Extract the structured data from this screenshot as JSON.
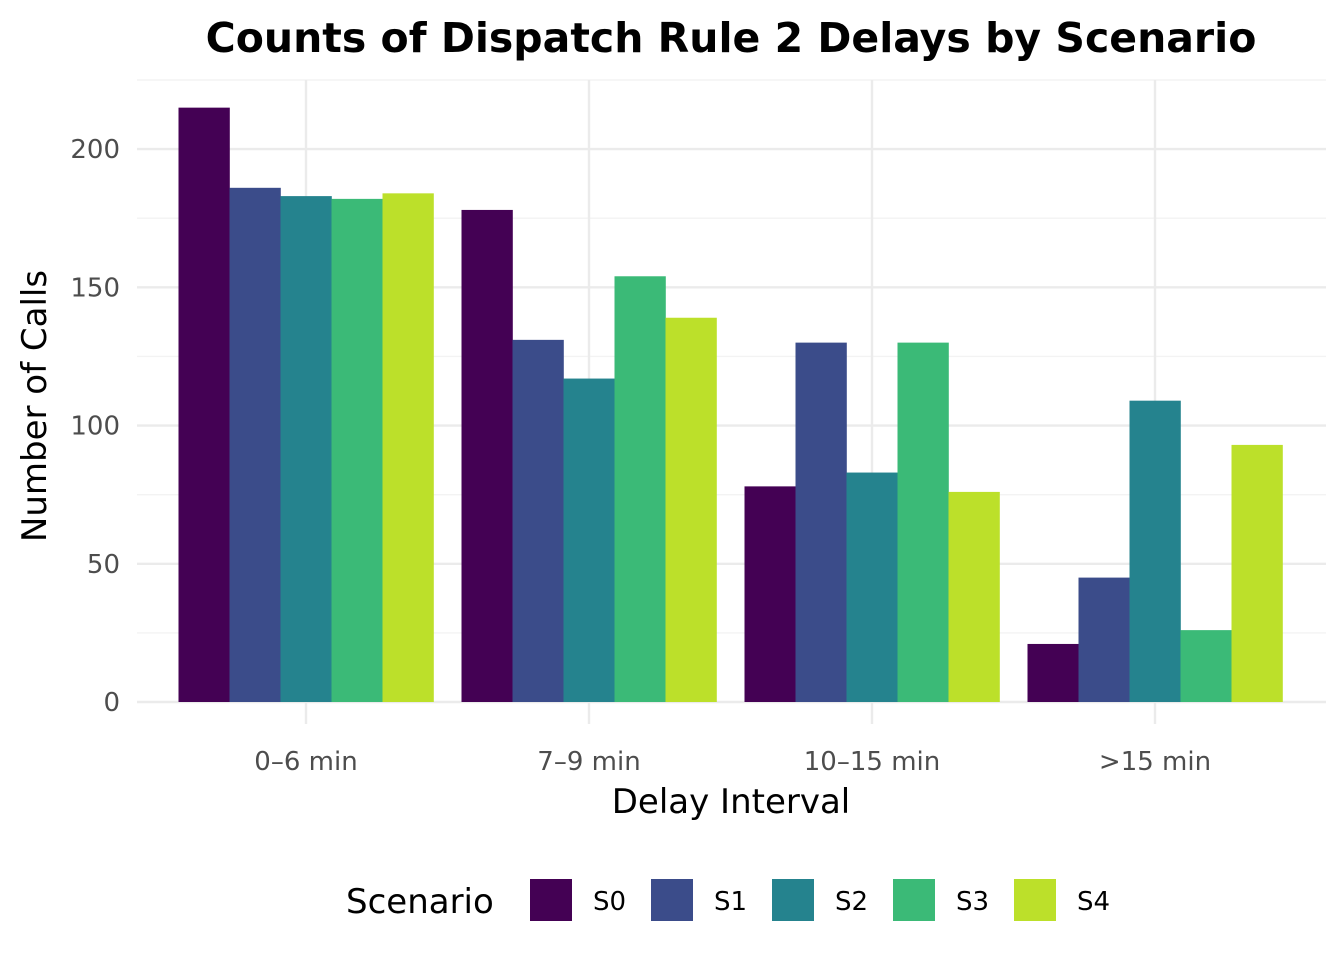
{
  "chart_data": {
    "type": "bar",
    "title": "Counts of Dispatch Rule 2 Delays by Scenario",
    "xlabel": "Delay Interval",
    "ylabel": "Number of Calls",
    "categories": [
      "0–6 min",
      "7–9 min",
      "10–15 min",
      ">15 min"
    ],
    "series": [
      {
        "name": "S0",
        "color": "#440154",
        "values": [
          215,
          178,
          78,
          21
        ]
      },
      {
        "name": "S1",
        "color": "#3b4c8a",
        "values": [
          186,
          131,
          130,
          45
        ]
      },
      {
        "name": "S2",
        "color": "#25838e",
        "values": [
          183,
          117,
          83,
          109
        ]
      },
      {
        "name": "S3",
        "color": "#3bba77",
        "values": [
          182,
          154,
          130,
          26
        ]
      },
      {
        "name": "S4",
        "color": "#bce02a",
        "values": [
          184,
          139,
          76,
          93
        ]
      }
    ],
    "ylim": [
      0,
      225
    ],
    "yticks": [
      0,
      50,
      100,
      150,
      200
    ],
    "grid": true,
    "legend": {
      "title": "Scenario",
      "position": "bottom"
    }
  }
}
